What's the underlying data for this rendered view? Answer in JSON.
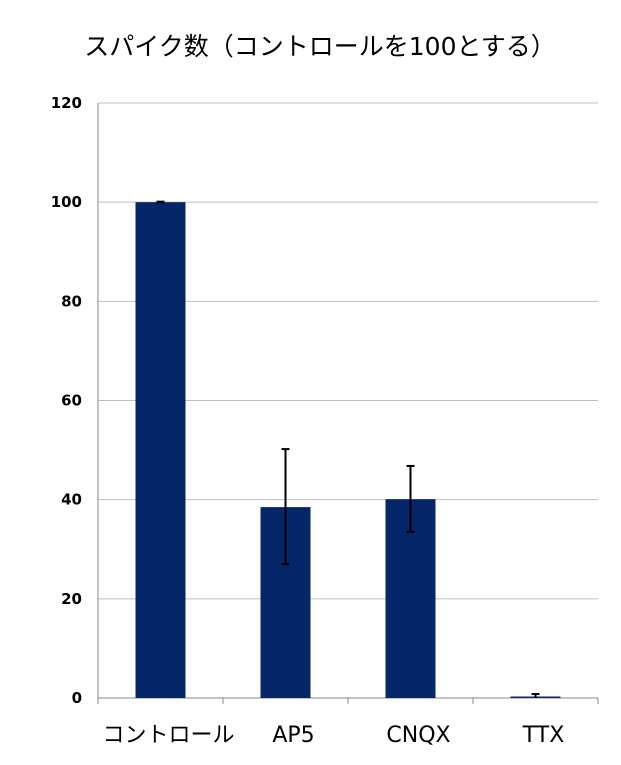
{
  "chart_data": {
    "type": "bar",
    "title": "スパイク数（コントロールを100とする）",
    "xlabel": "",
    "ylabel": "",
    "categories": [
      "コントロール",
      "AP5",
      "CNQX",
      "TTX"
    ],
    "values": [
      100,
      38.5,
      40.1,
      0.3
    ],
    "error_high": [
      100.1,
      50.2,
      46.8,
      0.8
    ],
    "error_low": [
      100,
      27.0,
      33.5,
      0
    ],
    "ylim": [
      0,
      120
    ],
    "yticks": [
      0,
      20,
      40,
      60,
      80,
      100,
      120
    ],
    "grid": true,
    "bar_color": "#06266a",
    "grid_color": "#bfbfbf"
  }
}
